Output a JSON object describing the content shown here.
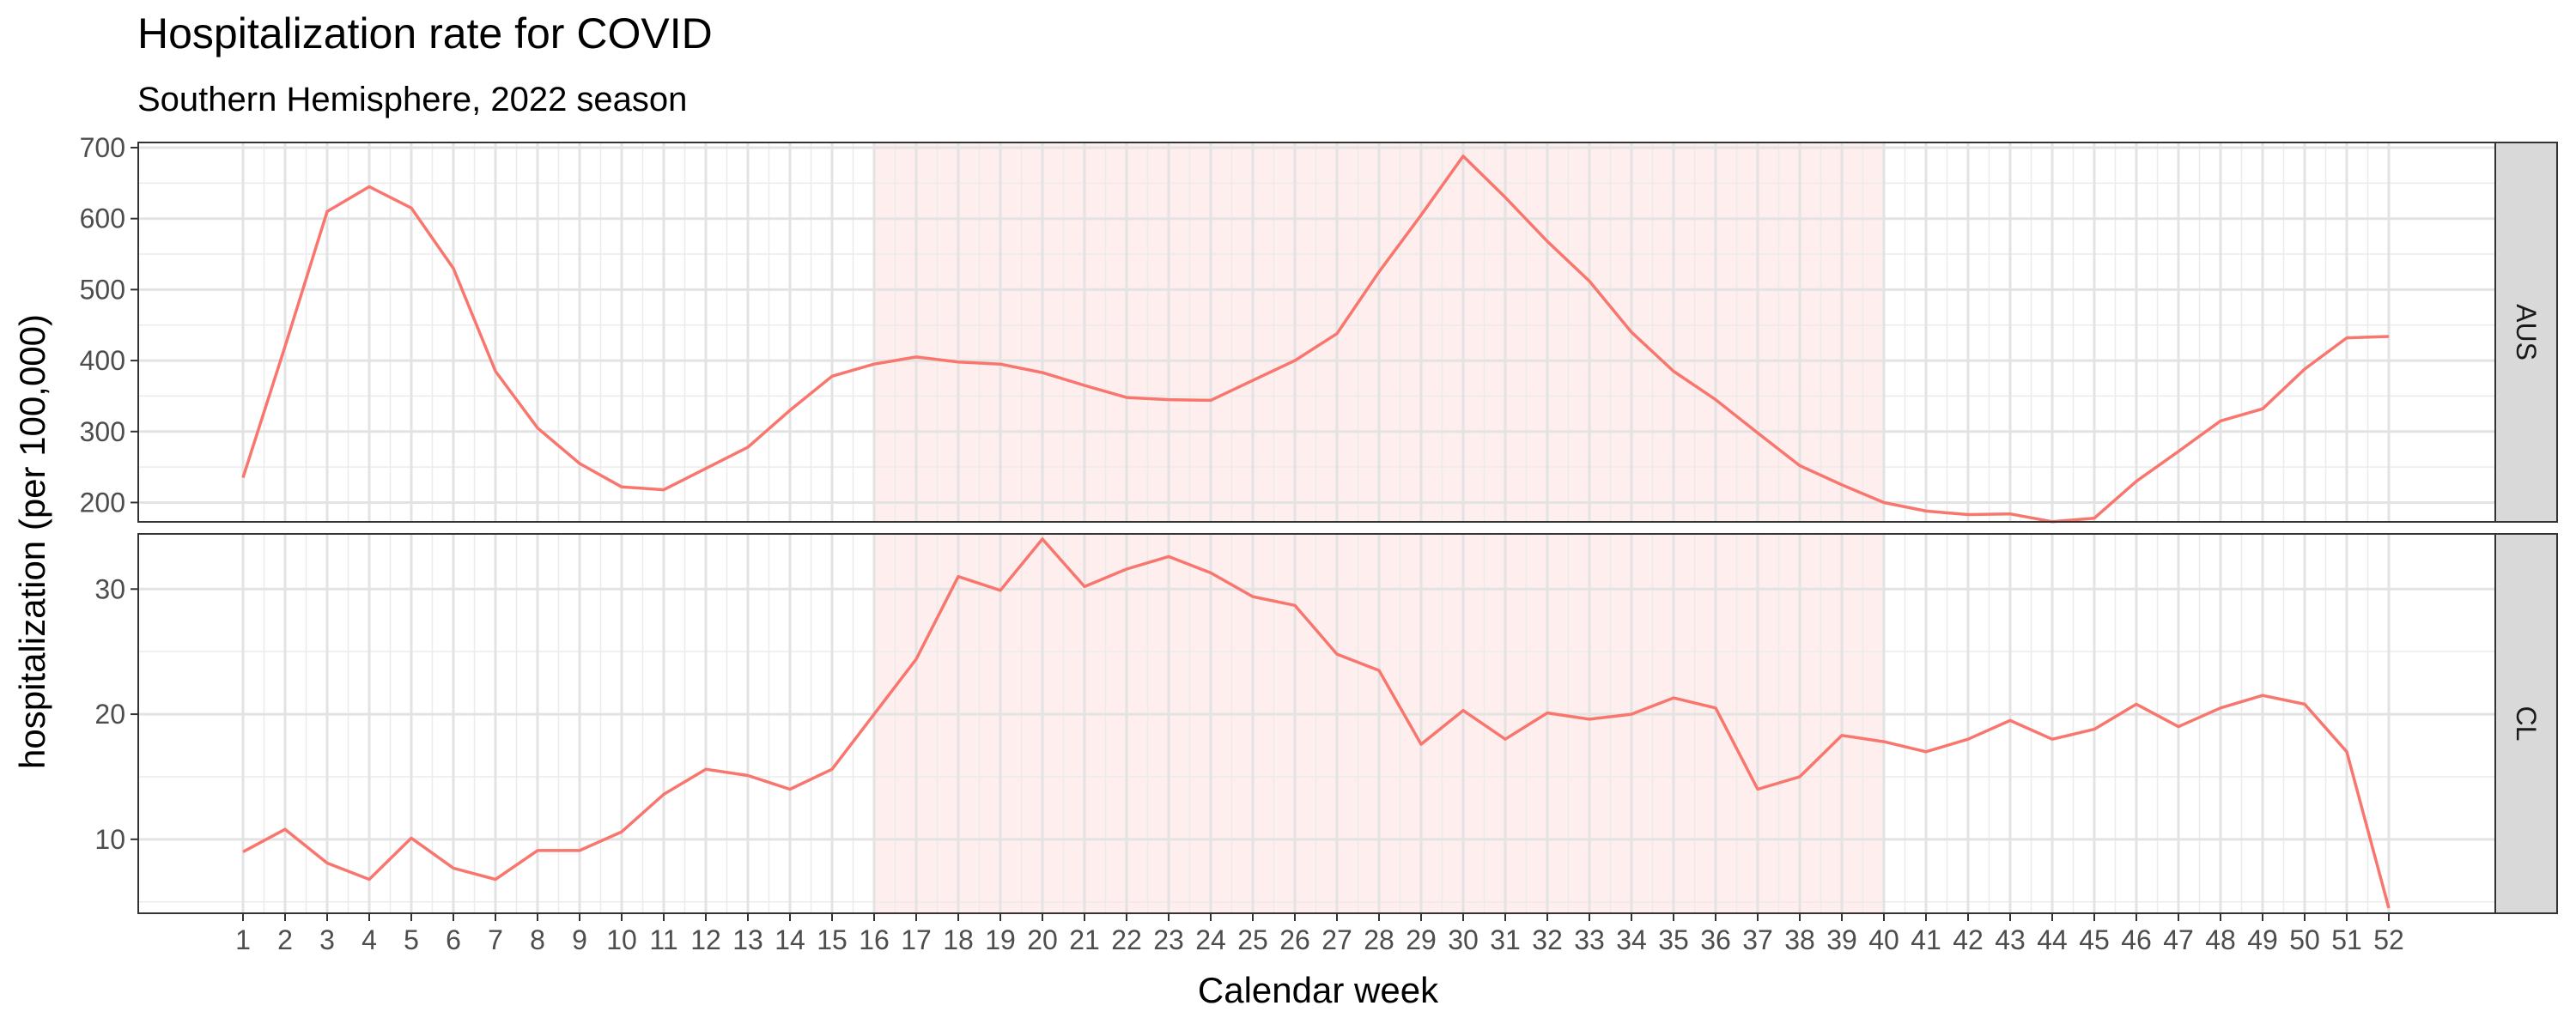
{
  "chart_data": {
    "type": "line",
    "title": "Hospitalization rate for COVID",
    "subtitle": "Southern Hemisphere, 2022 season",
    "xlabel": "Calendar week",
    "ylabel": "hospitalization (per 100,000)",
    "x": [
      1,
      2,
      3,
      4,
      5,
      6,
      7,
      8,
      9,
      10,
      11,
      12,
      13,
      14,
      15,
      16,
      17,
      18,
      19,
      20,
      21,
      22,
      23,
      24,
      25,
      26,
      27,
      28,
      29,
      30,
      31,
      32,
      33,
      34,
      35,
      36,
      37,
      38,
      39,
      40,
      41,
      42,
      43,
      44,
      45,
      46,
      47,
      48,
      49,
      50,
      51,
      52
    ],
    "xlim": [
      1,
      52
    ],
    "highlight_band": {
      "x_start": 16,
      "x_end": 40,
      "color": "#f8766d"
    },
    "line_color": "#f8766d",
    "grid": true,
    "legend": "none",
    "panels": [
      {
        "label": "AUS",
        "ylim": [
          180,
          700
        ],
        "yticks": [
          200,
          300,
          400,
          500,
          600,
          700
        ],
        "values": [
          235,
          420,
          610,
          645,
          615,
          530,
          385,
          305,
          255,
          222,
          218,
          248,
          278,
          330,
          378,
          395,
          405,
          398,
          395,
          383,
          365,
          348,
          345,
          344,
          372,
          400,
          438,
          525,
          605,
          688,
          630,
          568,
          512,
          440,
          385,
          345,
          298,
          252,
          225,
          200,
          188,
          183,
          184,
          173,
          178,
          230,
          272,
          315,
          332,
          388,
          432,
          434
        ]
      },
      {
        "label": "CL",
        "ylim": [
          4.5,
          34
        ],
        "yticks": [
          10,
          20,
          30
        ],
        "values": [
          9.0,
          10.8,
          8.1,
          6.8,
          10.1,
          7.7,
          6.8,
          9.1,
          9.1,
          10.6,
          13.6,
          15.6,
          15.1,
          14.0,
          15.6,
          20.0,
          24.4,
          31.0,
          29.9,
          34.0,
          30.2,
          31.6,
          32.6,
          31.3,
          29.4,
          28.7,
          24.8,
          23.5,
          17.6,
          20.3,
          18.0,
          20.1,
          19.6,
          20.0,
          21.3,
          20.5,
          14.0,
          15.0,
          18.3,
          17.8,
          17.0,
          18.0,
          19.5,
          18.0,
          18.8,
          20.8,
          19.0,
          20.5,
          21.5,
          20.8,
          17.0,
          4.5
        ]
      }
    ]
  }
}
